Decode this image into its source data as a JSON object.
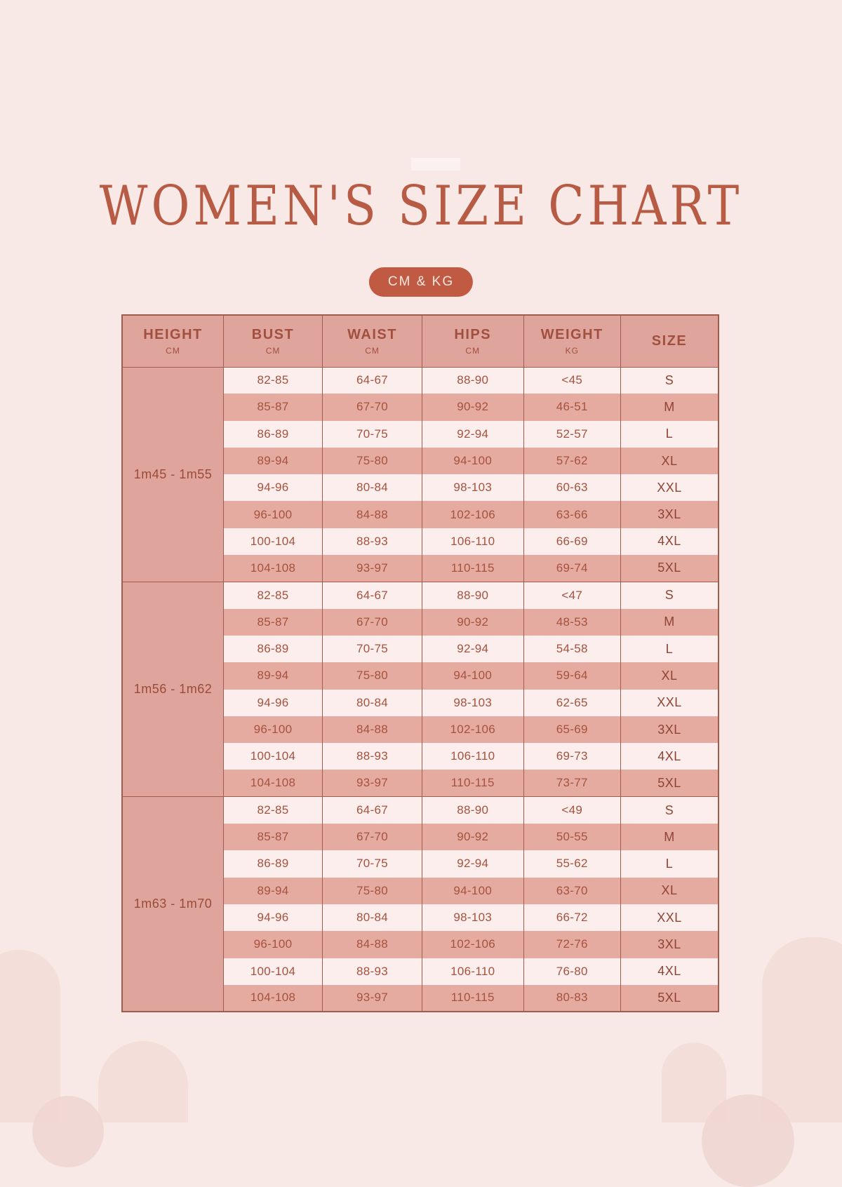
{
  "title": "WOMEN'S SIZE CHART",
  "unit_badge": "CM & KG",
  "table": {
    "columns": [
      {
        "label": "HEIGHT",
        "unit": "CM"
      },
      {
        "label": "BUST",
        "unit": "CM"
      },
      {
        "label": "WAIST",
        "unit": "CM"
      },
      {
        "label": "HIPS",
        "unit": "CM"
      },
      {
        "label": "WEIGHT",
        "unit": "KG"
      },
      {
        "label": "SIZE",
        "unit": ""
      }
    ]
  },
  "chart_data": {
    "type": "table",
    "title": "WOMEN'S SIZE CHART",
    "units": "CM & KG",
    "columns": [
      "HEIGHT (CM)",
      "BUST (CM)",
      "WAIST (CM)",
      "HIPS (CM)",
      "WEIGHT (KG)",
      "SIZE"
    ],
    "rows": [
      [
        "1m45 - 1m55",
        "82-85",
        "64-67",
        "88-90",
        "<45",
        "S"
      ],
      [
        "1m45 - 1m55",
        "85-87",
        "67-70",
        "90-92",
        "46-51",
        "M"
      ],
      [
        "1m45 - 1m55",
        "86-89",
        "70-75",
        "92-94",
        "52-57",
        "L"
      ],
      [
        "1m45 - 1m55",
        "89-94",
        "75-80",
        "94-100",
        "57-62",
        "XL"
      ],
      [
        "1m45 - 1m55",
        "94-96",
        "80-84",
        "98-103",
        "60-63",
        "XXL"
      ],
      [
        "1m45 - 1m55",
        "96-100",
        "84-88",
        "102-106",
        "63-66",
        "3XL"
      ],
      [
        "1m45 - 1m55",
        "100-104",
        "88-93",
        "106-110",
        "66-69",
        "4XL"
      ],
      [
        "1m45 - 1m55",
        "104-108",
        "93-97",
        "110-115",
        "69-74",
        "5XL"
      ],
      [
        "1m56 - 1m62",
        "82-85",
        "64-67",
        "88-90",
        "<47",
        "S"
      ],
      [
        "1m56 - 1m62",
        "85-87",
        "67-70",
        "90-92",
        "48-53",
        "M"
      ],
      [
        "1m56 - 1m62",
        "86-89",
        "70-75",
        "92-94",
        "54-58",
        "L"
      ],
      [
        "1m56 - 1m62",
        "89-94",
        "75-80",
        "94-100",
        "59-64",
        "XL"
      ],
      [
        "1m56 - 1m62",
        "94-96",
        "80-84",
        "98-103",
        "62-65",
        "XXL"
      ],
      [
        "1m56 - 1m62",
        "96-100",
        "84-88",
        "102-106",
        "65-69",
        "3XL"
      ],
      [
        "1m56 - 1m62",
        "100-104",
        "88-93",
        "106-110",
        "69-73",
        "4XL"
      ],
      [
        "1m56 - 1m62",
        "104-108",
        "93-97",
        "110-115",
        "73-77",
        "5XL"
      ],
      [
        "1m63 - 1m70",
        "82-85",
        "64-67",
        "88-90",
        "<49",
        "S"
      ],
      [
        "1m63 - 1m70",
        "85-87",
        "67-70",
        "90-92",
        "50-55",
        "M"
      ],
      [
        "1m63 - 1m70",
        "86-89",
        "70-75",
        "92-94",
        "55-62",
        "L"
      ],
      [
        "1m63 - 1m70",
        "89-94",
        "75-80",
        "94-100",
        "63-70",
        "XL"
      ],
      [
        "1m63 - 1m70",
        "94-96",
        "80-84",
        "98-103",
        "66-72",
        "XXL"
      ],
      [
        "1m63 - 1m70",
        "96-100",
        "84-88",
        "102-106",
        "72-76",
        "3XL"
      ],
      [
        "1m63 - 1m70",
        "100-104",
        "88-93",
        "106-110",
        "76-80",
        "4XL"
      ],
      [
        "1m63 - 1m70",
        "104-108",
        "93-97",
        "110-115",
        "80-83",
        "5XL"
      ]
    ]
  },
  "colors": {
    "background": "#f8e9e7",
    "accent": "#c05a42",
    "title_text": "#b75b44",
    "badge_text": "#f9e7df",
    "header_fill": "#dfa59c",
    "row_pink": "#e5aba1",
    "row_light": "#fbeeec",
    "border": "#a25c4b",
    "cell_text": "#a5523e",
    "size_text": "#8f4334",
    "deco_arch": "#f3ded9",
    "deco_circle": "#eed6d1"
  }
}
